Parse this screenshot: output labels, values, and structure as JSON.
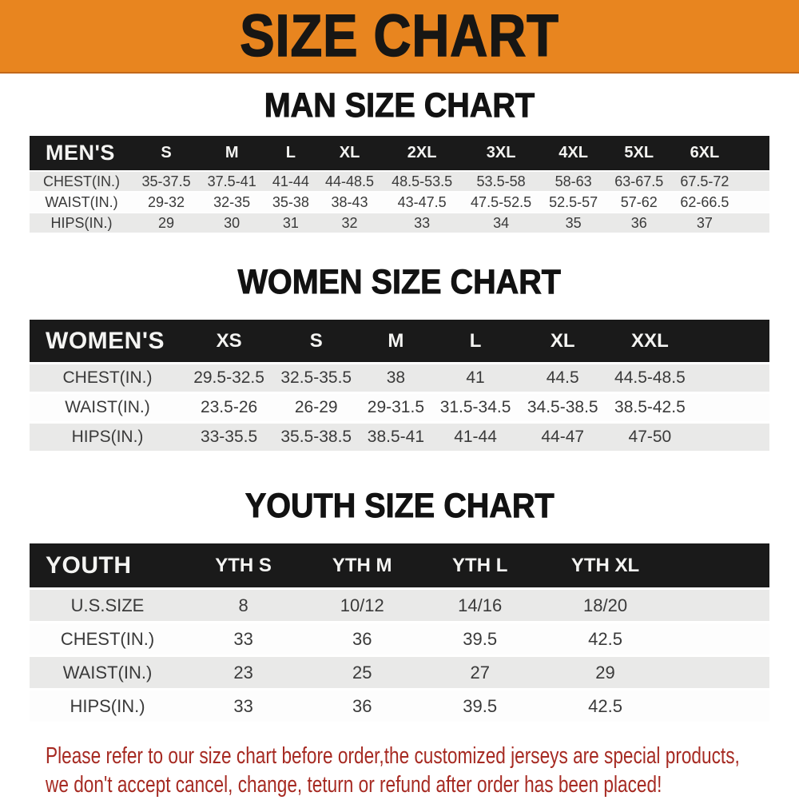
{
  "banner": {
    "title": "SIZE CHART"
  },
  "colors": {
    "banner_bg": "#E8851F",
    "header_bar_bg": "#1A1A1A",
    "row_alt_gray": "#E9E9E8",
    "footer_text": "#A62A22"
  },
  "chart_data": [
    {
      "type": "table",
      "title": "MAN SIZE CHART",
      "header_label": "MEN'S",
      "columns": [
        "S",
        "M",
        "L",
        "XL",
        "2XL",
        "3XL",
        "4XL",
        "5XL",
        "6XL"
      ],
      "rows": [
        {
          "label": "CHEST(IN.)",
          "values": [
            "35-37.5",
            "37.5-41",
            "41-44",
            "44-48.5",
            "48.5-53.5",
            "53.5-58",
            "58-63",
            "63-67.5",
            "67.5-72"
          ]
        },
        {
          "label": "WAIST(IN.)",
          "values": [
            "29-32",
            "32-35",
            "35-38",
            "38-43",
            "43-47.5",
            "47.5-52.5",
            "52.5-57",
            "57-62",
            "62-66.5"
          ]
        },
        {
          "label": "HIPS(IN.)",
          "values": [
            "29",
            "30",
            "31",
            "32",
            "33",
            "34",
            "35",
            "36",
            "37"
          ]
        }
      ]
    },
    {
      "type": "table",
      "title": "WOMEN SIZE CHART",
      "header_label": "WOMEN'S",
      "columns": [
        "XS",
        "S",
        "M",
        "L",
        "XL",
        "XXL"
      ],
      "rows": [
        {
          "label": "CHEST(IN.)",
          "values": [
            "29.5-32.5",
            "32.5-35.5",
            "38",
            "41",
            "44.5",
            "44.5-48.5"
          ]
        },
        {
          "label": "WAIST(IN.)",
          "values": [
            "23.5-26",
            "26-29",
            "29-31.5",
            "31.5-34.5",
            "34.5-38.5",
            "38.5-42.5"
          ]
        },
        {
          "label": "HIPS(IN.)",
          "values": [
            "33-35.5",
            "35.5-38.5",
            "38.5-41",
            "41-44",
            "44-47",
            "47-50"
          ]
        }
      ]
    },
    {
      "type": "table",
      "title": "YOUTH SIZE CHART",
      "header_label": "YOUTH",
      "columns": [
        "YTH S",
        "YTH M",
        "YTH L",
        "YTH XL"
      ],
      "rows": [
        {
          "label": "U.S.SIZE",
          "values": [
            "8",
            "10/12",
            "14/16",
            "18/20"
          ]
        },
        {
          "label": "CHEST(IN.)",
          "values": [
            "33",
            "36",
            "39.5",
            "42.5"
          ]
        },
        {
          "label": "WAIST(IN.)",
          "values": [
            "23",
            "25",
            "27",
            "29"
          ]
        },
        {
          "label": "HIPS(IN.)",
          "values": [
            "33",
            "36",
            "39.5",
            "42.5"
          ]
        }
      ]
    }
  ],
  "footer": {
    "line1": "Please refer to our size chart before order,the customized jerseys are special products,",
    "line2": "we don't accept cancel, change, teturn or refund after order has been placed!"
  }
}
